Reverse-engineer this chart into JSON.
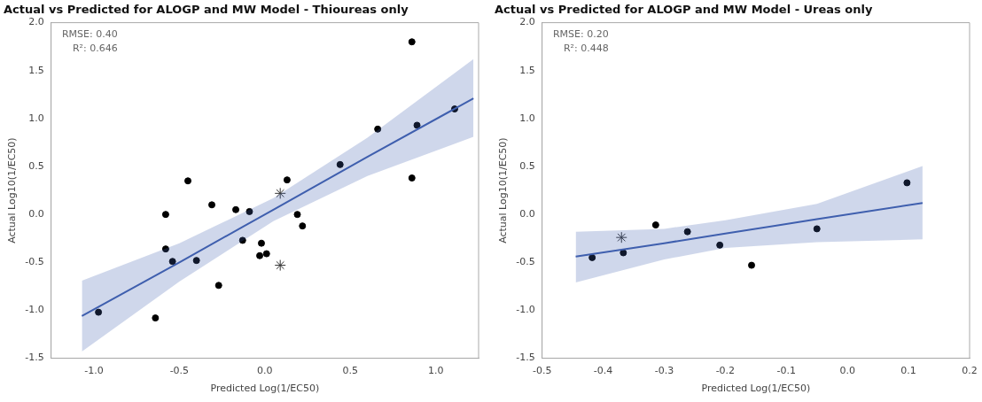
{
  "chart_data": [
    {
      "type": "scatter",
      "title": "Actual vs Predicted for ALOGP and MW Model - Thioureas only",
      "xlabel": "Predicted Log(1/EC50)",
      "ylabel": "Actual Log10(1/EC50)",
      "annotations": [
        "RMSE: 0.40",
        "R²: 0.646"
      ],
      "xlim": [
        -1.25,
        1.25
      ],
      "ylim": [
        -1.5,
        2.0
      ],
      "xticks": [
        {
          "value": -1,
          "label": "-1.0"
        },
        -0.5,
        {
          "value": 0,
          "label": "0.0"
        },
        0.5,
        {
          "value": 1,
          "label": "1.0"
        }
      ],
      "yticks": [
        -1.5,
        {
          "value": -1,
          "label": "-1.0"
        },
        -0.5,
        {
          "value": 0,
          "label": "0.0"
        },
        0.5,
        {
          "value": 1,
          "label": "1.0"
        },
        1.5,
        {
          "value": 2,
          "label": "2.0"
        }
      ],
      "grid": false,
      "legend": false,
      "series": [
        {
          "type": "line",
          "color": "#3f5fae",
          "marker": "none",
          "x": [
            -1.07,
            -0.5,
            0.05,
            0.6,
            1.22
          ],
          "values": [
            -1.06,
            -0.5,
            0.05,
            0.6,
            1.21
          ],
          "lower": [
            -1.43,
            -0.7,
            -0.07,
            0.4,
            0.81
          ],
          "upper": [
            -0.69,
            -0.3,
            0.17,
            0.8,
            1.62
          ]
        },
        {
          "color": "#000000",
          "marker": "circle",
          "x": [
            -0.973,
            -0.64,
            -0.58,
            -0.58,
            -0.54,
            -0.45,
            -0.4,
            -0.31,
            -0.27,
            -0.17,
            -0.09,
            -0.13,
            -0.02,
            -0.03,
            0.01,
            0.13,
            0.19,
            0.22,
            0.44,
            0.66,
            0.86,
            0.86,
            0.89,
            1.11
          ],
          "values": [
            -1.02,
            -1.08,
            0.0,
            -0.36,
            -0.49,
            0.35,
            -0.48,
            0.1,
            -0.74,
            0.05,
            0.03,
            -0.27,
            -0.3,
            -0.43,
            -0.41,
            0.36,
            0.0,
            -0.12,
            0.52,
            0.89,
            1.8,
            0.38,
            0.93,
            1.1
          ]
        },
        {
          "color": "#333333",
          "marker": "cross",
          "x": [
            0.09,
            0.09
          ],
          "values": [
            0.22,
            -0.53
          ]
        }
      ]
    },
    {
      "type": "scatter",
      "title": "Actual vs Predicted for ALOGP and MW Model - Ureas only",
      "xlabel": "Predicted Log(1/EC50)",
      "ylabel": "Actual Log10(1/EC50)",
      "annotations": [
        "RMSE: 0.20",
        "R²: 0.448"
      ],
      "xlim": [
        -0.5,
        0.2
      ],
      "ylim": [
        -1.5,
        2.0
      ],
      "xticks": [
        -0.5,
        -0.4,
        -0.3,
        -0.2,
        -0.1,
        {
          "value": 0,
          "label": "0.0"
        },
        0.1,
        0.2
      ],
      "yticks": [
        -1.5,
        {
          "value": -1,
          "label": "-1.0"
        },
        -0.5,
        {
          "value": 0,
          "label": "0.0"
        },
        0.5,
        {
          "value": 1,
          "label": "1.0"
        },
        1.5,
        {
          "value": 2,
          "label": "2.0"
        }
      ],
      "grid": false,
      "legend": false,
      "series": [
        {
          "type": "line",
          "color": "#3f5fae",
          "marker": "none",
          "x": [
            -0.445,
            -0.3,
            -0.2,
            -0.05,
            0.123
          ],
          "values": [
            -0.44,
            -0.3,
            -0.2,
            -0.05,
            0.12
          ],
          "lower": [
            -0.71,
            -0.47,
            -0.35,
            -0.29,
            -0.26
          ],
          "upper": [
            -0.18,
            -0.15,
            -0.06,
            0.11,
            0.505
          ]
        },
        {
          "color": "#000000",
          "marker": "circle",
          "x": [
            -0.418,
            -0.367,
            -0.314,
            -0.262,
            -0.209,
            -0.157,
            -0.05,
            0.0975
          ],
          "values": [
            -0.45,
            -0.4,
            -0.11,
            -0.18,
            -0.32,
            -0.53,
            -0.15,
            0.33
          ]
        },
        {
          "color": "#333333",
          "marker": "cross",
          "x": [
            -0.37
          ],
          "values": [
            -0.24
          ]
        }
      ]
    }
  ]
}
